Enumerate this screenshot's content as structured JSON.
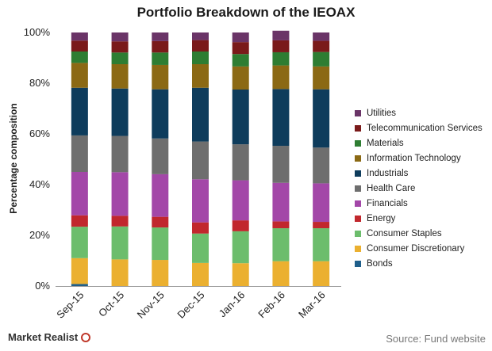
{
  "chart_data": {
    "type": "bar",
    "stacked": true,
    "percent": true,
    "title": "Portfolio Breakdown of the IEOAX",
    "xlabel": "",
    "ylabel": "Percentage composition",
    "ylim": [
      0,
      100
    ],
    "yticks": [
      "0%",
      "20%",
      "40%",
      "60%",
      "80%",
      "100%"
    ],
    "grid": false,
    "legend_position": "right",
    "categories": [
      "Sep-15",
      "Oct-15",
      "Nov-15",
      "Dec-15",
      "Jan-16",
      "Feb-16",
      "Mar-16"
    ],
    "series": [
      {
        "name": "Bonds",
        "color": "#1f5f8b",
        "values": [
          0.8,
          0,
          0,
          0,
          0,
          0,
          0
        ]
      },
      {
        "name": "Consumer Discretionary",
        "color": "#ebb030",
        "values": [
          10.2,
          10.5,
          10.3,
          9.1,
          9.0,
          9.8,
          9.8
        ]
      },
      {
        "name": "Consumer Staples",
        "color": "#6cbd6c",
        "values": [
          12.4,
          13.0,
          12.8,
          11.6,
          12.6,
          13.0,
          13.0
        ]
      },
      {
        "name": "Energy",
        "color": "#c1272d",
        "values": [
          4.5,
          4.2,
          4.2,
          4.4,
          4.3,
          2.7,
          2.5
        ]
      },
      {
        "name": "Financials",
        "color": "#a347a8",
        "values": [
          17.1,
          17.2,
          16.8,
          17.0,
          15.8,
          15.2,
          15.2
        ]
      },
      {
        "name": "Health Care",
        "color": "#6e6e6e",
        "values": [
          14.4,
          14.3,
          14.1,
          14.9,
          14.2,
          14.6,
          14.1
        ]
      },
      {
        "name": "Industrials",
        "color": "#0e3c5c",
        "values": [
          18.8,
          18.7,
          19.4,
          21.2,
          21.6,
          22.4,
          23.0
        ]
      },
      {
        "name": "Information Technology",
        "color": "#8b6914",
        "values": [
          9.8,
          9.6,
          9.6,
          9.3,
          9.1,
          9.3,
          9.0
        ]
      },
      {
        "name": "Materials",
        "color": "#2e7d32",
        "values": [
          4.5,
          4.6,
          4.9,
          5.0,
          4.9,
          5.2,
          5.7
        ]
      },
      {
        "name": "Telecommunication Services",
        "color": "#7a1a1a",
        "values": [
          4.3,
          4.4,
          4.5,
          4.5,
          4.7,
          4.7,
          4.4
        ]
      },
      {
        "name": "Utilities",
        "color": "#6a3467",
        "values": [
          3.2,
          3.5,
          3.4,
          3.0,
          3.8,
          3.8,
          3.3
        ]
      }
    ]
  },
  "footer": {
    "brand": "Market Realist",
    "source": "Source: Fund website"
  }
}
